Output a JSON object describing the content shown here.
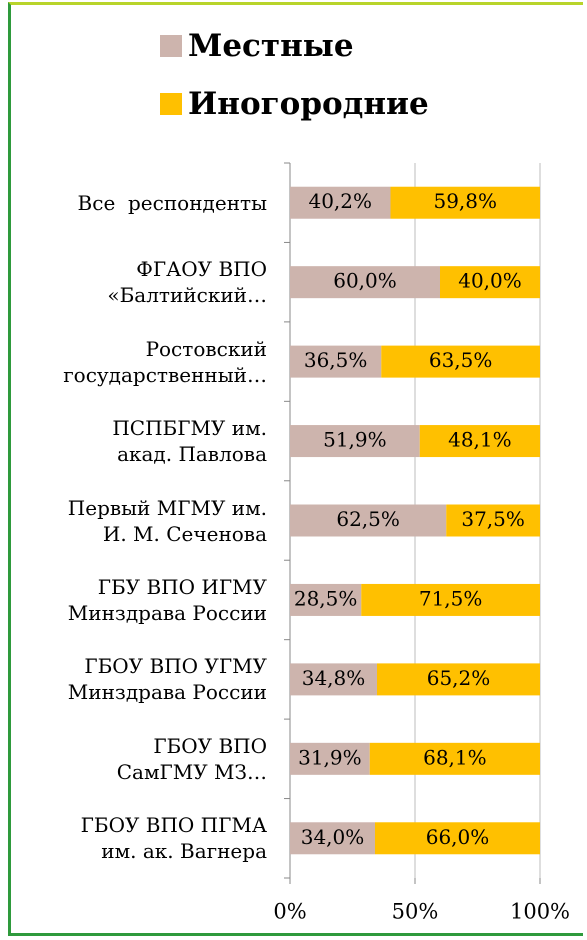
{
  "chart_data": {
    "type": "bar",
    "orientation": "horizontal",
    "stacked": true,
    "categories": [
      "Все  респонденты",
      "ФГАОУ ВПО\n«Балтийский…",
      "Ростовский\nгосударственный…",
      "ПСПБГМУ им.\nакад. Павлова",
      "Первый МГМУ им.\nИ. М. Сеченова",
      "ГБУ ВПО ИГМУ\nМинздрава России",
      "ГБОУ ВПО УГМУ\nМинздрава России",
      "ГБОУ ВПО\nСамГМУ МЗ…",
      "ГБОУ ВПО ПГМА\nим. ак. Вагнера"
    ],
    "series": [
      {
        "name": "Местные",
        "color": "#cdb4ad",
        "values": [
          40.2,
          60.0,
          36.5,
          51.9,
          62.5,
          28.5,
          34.8,
          31.9,
          34.0
        ],
        "value_labels": [
          "40,2%",
          "60,0%",
          "36,5%",
          "51,9%",
          "62,5%",
          "28,5%",
          "34,8%",
          "31,9%",
          "34,0%"
        ]
      },
      {
        "name": "Иногородние",
        "color": "#ffc000",
        "values": [
          59.8,
          40.0,
          63.5,
          48.1,
          37.5,
          71.5,
          65.2,
          68.1,
          66.0
        ],
        "value_labels": [
          "59,8%",
          "40,0%",
          "63,5%",
          "48,1%",
          "37,5%",
          "71,5%",
          "65,2%",
          "68,1%",
          "66,0%"
        ]
      }
    ],
    "xlim": [
      0,
      100
    ],
    "xticks": [
      {
        "value": 0,
        "label": "0%"
      },
      {
        "value": 50,
        "label": "50%"
      },
      {
        "value": 100,
        "label": "100%"
      }
    ],
    "grid": true,
    "legend": "top"
  }
}
